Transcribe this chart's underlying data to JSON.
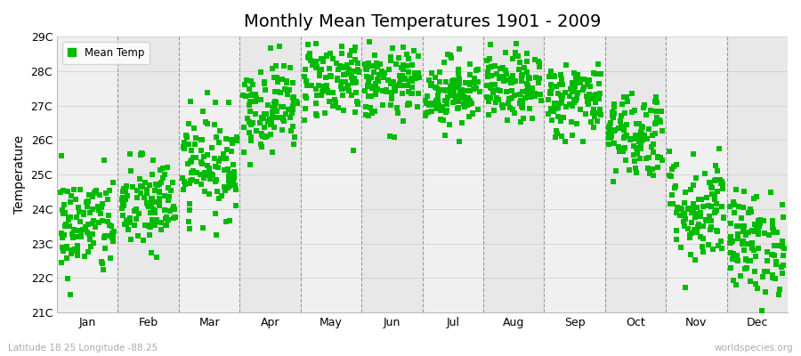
{
  "title": "Monthly Mean Temperatures 1901 - 2009",
  "ylabel": "Temperature",
  "subtitle_left": "Latitude 18.25 Longitude -88.25",
  "subtitle_right": "worldspecies.org",
  "ylim": [
    21,
    29
  ],
  "ytick_labels": [
    "21C",
    "22C",
    "23C",
    "24C",
    "25C",
    "26C",
    "27C",
    "28C",
    "29C"
  ],
  "ytick_values": [
    21,
    22,
    23,
    24,
    25,
    26,
    27,
    28,
    29
  ],
  "months": [
    "Jan",
    "Feb",
    "Mar",
    "Apr",
    "May",
    "Jun",
    "Jul",
    "Aug",
    "Sep",
    "Oct",
    "Nov",
    "Dec"
  ],
  "point_color": "#00bb00",
  "legend_label": "Mean Temp",
  "marker": "s",
  "marker_size": 4,
  "background_color": "#f0f0f0",
  "band_colors_odd": "#f0f0f0",
  "band_colors_even": "#e8e8e8",
  "monthly_means": [
    23.5,
    24.1,
    25.3,
    27.0,
    27.8,
    27.6,
    27.4,
    27.5,
    27.2,
    26.2,
    24.0,
    23.0
  ],
  "monthly_stds": [
    0.75,
    0.7,
    0.75,
    0.65,
    0.6,
    0.52,
    0.5,
    0.5,
    0.55,
    0.65,
    0.8,
    0.75
  ],
  "n_years": 109,
  "seed": 42,
  "title_fontsize": 14,
  "axis_fontsize": 9,
  "ylabel_fontsize": 10
}
